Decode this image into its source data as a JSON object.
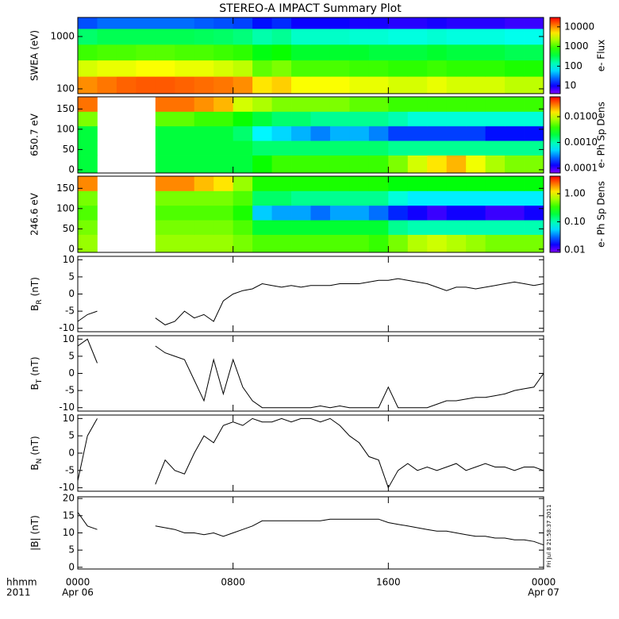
{
  "title": "STEREO-A IMPACT Summary Plot",
  "stamp": "Fri Jul  8 21:58:37 2011",
  "x_axis": {
    "xlim": [
      0,
      24
    ],
    "xticks": [
      {
        "value": 0,
        "label": "0000"
      },
      {
        "value": 8,
        "label": "0800"
      },
      {
        "value": 16,
        "label": "1600"
      },
      {
        "value": 24,
        "label": "0000"
      }
    ],
    "dates": [
      "Apr 06",
      "Apr 07"
    ],
    "label": [
      "hhmm",
      "2011"
    ]
  },
  "chart_data": [
    {
      "type": "heatmap",
      "ylabel": "SWEA (eV)",
      "ylog": true,
      "ylim": [
        81,
        2310
      ],
      "yticks": [
        100,
        1000
      ],
      "x": [
        0,
        1,
        2,
        3,
        4,
        5,
        6,
        7,
        8,
        9,
        10,
        11,
        12,
        13,
        14,
        15,
        16,
        17,
        18,
        19,
        20,
        21,
        22,
        23
      ],
      "y": [
        120,
        250,
        500,
        1000,
        2000
      ],
      "values": [
        [
          10000,
          12000,
          14000,
          15000,
          15000,
          14000,
          13000,
          12000,
          10000,
          5000,
          6000,
          4000,
          4000,
          4000,
          3500,
          3500,
          3000,
          3000,
          3500,
          3000,
          3000,
          3000,
          2500,
          2500
        ],
        [
          3000,
          3500,
          3500,
          4000,
          4000,
          3500,
          3500,
          3000,
          2500,
          1200,
          1500,
          1000,
          1000,
          1000,
          900,
          900,
          800,
          800,
          900,
          800,
          800,
          800,
          700,
          700
        ],
        [
          900,
          1000,
          1000,
          1100,
          1100,
          1000,
          1000,
          900,
          800,
          500,
          600,
          400,
          400,
          400,
          400,
          350,
          350,
          350,
          400,
          350,
          350,
          350,
          300,
          300
        ],
        [
          250,
          300,
          300,
          300,
          300,
          300,
          280,
          260,
          220,
          150,
          180,
          120,
          120,
          120,
          110,
          110,
          100,
          100,
          110,
          100,
          100,
          100,
          90,
          90
        ],
        [
          20,
          25,
          25,
          25,
          25,
          25,
          22,
          20,
          18,
          12,
          15,
          10,
          10,
          10,
          9,
          9,
          8,
          8,
          9,
          8,
          8,
          8,
          7,
          7
        ]
      ],
      "colorbar": {
        "label": "e- Flux",
        "log": true,
        "clim": [
          4,
          30000
        ],
        "ticks": [
          10,
          100,
          1000,
          10000
        ]
      }
    },
    {
      "type": "heatmap",
      "ylabel": "650.7 eV",
      "ylog": false,
      "ylim": [
        -8,
        180
      ],
      "yticks": [
        0,
        50,
        100,
        150
      ],
      "x": [
        0,
        1,
        2,
        3,
        4,
        5,
        6,
        7,
        8,
        9,
        10,
        11,
        12,
        13,
        14,
        15,
        16,
        17,
        18,
        19,
        20,
        21,
        22,
        23
      ],
      "y": [
        18,
        54,
        90,
        126,
        162
      ],
      "values": [
        [
          0.002,
          null,
          null,
          null,
          0.002,
          0.002,
          0.002,
          0.002,
          0.002,
          0.003,
          0.004,
          0.004,
          0.004,
          0.004,
          0.004,
          0.004,
          0.006,
          0.01,
          0.015,
          0.02,
          0.012,
          0.008,
          0.006,
          0.006
        ],
        [
          0.002,
          null,
          null,
          null,
          0.002,
          0.002,
          0.002,
          0.002,
          0.002,
          0.0015,
          0.0015,
          0.0015,
          0.0015,
          0.0015,
          0.0015,
          0.0015,
          0.0012,
          0.0012,
          0.0012,
          0.0012,
          0.0012,
          0.0012,
          0.0012,
          0.0012
        ],
        [
          0.002,
          null,
          null,
          null,
          0.002,
          0.002,
          0.002,
          0.002,
          0.0015,
          0.0006,
          0.0005,
          0.0004,
          0.0003,
          0.0004,
          0.0004,
          0.0003,
          0.0002,
          0.0002,
          0.0002,
          0.0002,
          0.0002,
          0.00015,
          0.00015,
          0.00015
        ],
        [
          0.006,
          null,
          null,
          null,
          0.005,
          0.005,
          0.004,
          0.004,
          0.003,
          0.002,
          0.0015,
          0.0015,
          0.0012,
          0.0012,
          0.0012,
          0.0012,
          0.001,
          0.0008,
          0.0008,
          0.0008,
          0.0008,
          0.0008,
          0.0008,
          0.0008
        ],
        [
          0.03,
          null,
          null,
          null,
          0.03,
          0.03,
          0.025,
          0.02,
          0.01,
          0.008,
          0.006,
          0.006,
          0.006,
          0.006,
          0.005,
          0.005,
          0.004,
          0.004,
          0.004,
          0.004,
          0.004,
          0.004,
          0.004,
          0.004
        ]
      ],
      "colorbar": {
        "label": "e- Ph Sp Dens",
        "log": true,
        "clim": [
          6.5e-05,
          0.059
        ],
        "ticks": [
          0.0001,
          {
            "value": 0.001,
            "label": "0.0010"
          },
          {
            "value": 0.01,
            "label": "0.0100"
          }
        ]
      }
    },
    {
      "type": "heatmap",
      "ylabel": "246.6 eV",
      "ylog": false,
      "ylim": [
        -8,
        180
      ],
      "yticks": [
        0,
        50,
        100,
        150
      ],
      "x": [
        0,
        1,
        2,
        3,
        4,
        5,
        6,
        7,
        8,
        9,
        10,
        11,
        12,
        13,
        14,
        15,
        16,
        17,
        18,
        19,
        20,
        21,
        22,
        23
      ],
      "y": [
        18,
        54,
        90,
        126,
        162
      ],
      "values": [
        [
          0.6,
          null,
          null,
          null,
          0.6,
          0.6,
          0.6,
          0.6,
          0.5,
          0.4,
          0.4,
          0.4,
          0.4,
          0.4,
          0.4,
          0.35,
          0.5,
          0.7,
          0.8,
          0.7,
          0.6,
          0.5,
          0.5,
          0.5
        ],
        [
          0.5,
          null,
          null,
          null,
          0.5,
          0.5,
          0.5,
          0.5,
          0.4,
          0.2,
          0.2,
          0.2,
          0.2,
          0.2,
          0.2,
          0.2,
          0.12,
          0.1,
          0.1,
          0.1,
          0.1,
          0.1,
          0.1,
          0.1
        ],
        [
          0.4,
          null,
          null,
          null,
          0.4,
          0.4,
          0.4,
          0.4,
          0.3,
          0.05,
          0.04,
          0.04,
          0.03,
          0.04,
          0.04,
          0.03,
          0.02,
          0.015,
          0.012,
          0.015,
          0.015,
          0.012,
          0.012,
          0.015
        ],
        [
          0.5,
          null,
          null,
          null,
          0.5,
          0.5,
          0.5,
          0.5,
          0.4,
          0.15,
          0.15,
          0.12,
          0.12,
          0.12,
          0.12,
          0.12,
          0.08,
          0.06,
          0.06,
          0.06,
          0.06,
          0.06,
          0.06,
          0.06
        ],
        [
          2,
          null,
          null,
          null,
          2,
          2,
          1.5,
          1.2,
          0.6,
          0.3,
          0.3,
          0.3,
          0.3,
          0.3,
          0.3,
          0.3,
          0.25,
          0.25,
          0.25,
          0.25,
          0.25,
          0.25,
          0.25,
          0.25
        ]
      ],
      "colorbar": {
        "label": "e- Ph Sp Dens",
        "log": true,
        "clim": [
          0.0082,
          4.2
        ],
        "ticks": [
          0.01,
          {
            "value": 0.1,
            "label": "0.10"
          },
          {
            "value": 1,
            "label": "1.00"
          }
        ]
      }
    },
    {
      "type": "line",
      "ylabel": {
        "symbol": "B",
        "sub": "R",
        "unit": "(nT)"
      },
      "ylim": [
        -11,
        11
      ],
      "yticks": [
        -10,
        -5,
        0,
        5,
        10
      ],
      "color": "#000000",
      "x": [
        0,
        0.5,
        1,
        1.5,
        2,
        2.5,
        3,
        3.5,
        4,
        4.5,
        5,
        5.5,
        6,
        6.5,
        7,
        7.5,
        8,
        8.5,
        9,
        9.5,
        10,
        10.5,
        11,
        11.5,
        12,
        12.5,
        13,
        13.5,
        14,
        14.5,
        15,
        15.5,
        16,
        16.5,
        17,
        17.5,
        18,
        18.5,
        19,
        19.5,
        20,
        20.5,
        21,
        21.5,
        22,
        22.5,
        23,
        23.5,
        24
      ],
      "values": [
        -8,
        -6,
        -5,
        null,
        null,
        null,
        null,
        null,
        -7,
        -9,
        -8,
        -5,
        -7,
        -6,
        -8,
        -2,
        0,
        1,
        1.5,
        3,
        2.5,
        2,
        2.5,
        2,
        2.5,
        2.5,
        2.5,
        3,
        3,
        3,
        3.5,
        4,
        4,
        4.5,
        4,
        3.5,
        3,
        2,
        1,
        2,
        2,
        1.5,
        2,
        2.5,
        3,
        3.5,
        3,
        2.5,
        3
      ]
    },
    {
      "type": "line",
      "ylabel": {
        "symbol": "B",
        "sub": "T",
        "unit": "(nT)"
      },
      "ylim": [
        -11,
        11
      ],
      "yticks": [
        -10,
        -5,
        0,
        5,
        10
      ],
      "color": "#000000",
      "x": [
        0,
        0.5,
        1,
        1.5,
        2,
        2.5,
        3,
        3.5,
        4,
        4.5,
        5,
        5.5,
        6,
        6.5,
        7,
        7.5,
        8,
        8.5,
        9,
        9.5,
        10,
        10.5,
        11,
        11.5,
        12,
        12.5,
        13,
        13.5,
        14,
        14.5,
        15,
        15.5,
        16,
        16.5,
        17,
        17.5,
        18,
        18.5,
        19,
        19.5,
        20,
        20.5,
        21,
        21.5,
        22,
        22.5,
        23,
        23.5,
        24
      ],
      "values": [
        8,
        10,
        3,
        null,
        null,
        null,
        null,
        null,
        8,
        6,
        5,
        4,
        -2,
        -8,
        4,
        -6,
        4,
        -4,
        -8,
        -10,
        -10,
        -10,
        -10,
        -10,
        -10,
        -9.5,
        -10,
        -9.5,
        -10,
        -10,
        -10,
        -10,
        -4,
        -10,
        -10,
        -10,
        -10,
        -9,
        -8,
        -8,
        -7.5,
        -7,
        -7,
        -6.5,
        -6,
        -5,
        -4.5,
        -4,
        0
      ]
    },
    {
      "type": "line",
      "ylabel": {
        "symbol": "B",
        "sub": "N",
        "unit": "(nT)"
      },
      "ylim": [
        -11,
        11
      ],
      "yticks": [
        -10,
        -5,
        0,
        5,
        10
      ],
      "color": "#000000",
      "x": [
        0,
        0.5,
        1,
        1.5,
        2,
        2.5,
        3,
        3.5,
        4,
        4.5,
        5,
        5.5,
        6,
        6.5,
        7,
        7.5,
        8,
        8.5,
        9,
        9.5,
        10,
        10.5,
        11,
        11.5,
        12,
        12.5,
        13,
        13.5,
        14,
        14.5,
        15,
        15.5,
        16,
        16.5,
        17,
        17.5,
        18,
        18.5,
        19,
        19.5,
        20,
        20.5,
        21,
        21.5,
        22,
        22.5,
        23,
        23.5,
        24
      ],
      "values": [
        -8,
        5,
        10,
        null,
        null,
        null,
        null,
        null,
        -9,
        -2,
        -5,
        -6,
        0,
        5,
        3,
        8,
        9,
        8,
        10,
        9,
        9,
        10,
        9,
        10,
        10,
        9,
        10,
        8,
        5,
        3,
        -1,
        -2,
        -10,
        -5,
        -3,
        -5,
        -4,
        -5,
        -4,
        -3,
        -5,
        -4,
        -3,
        -4,
        -4,
        -5,
        -4,
        -4,
        -5
      ]
    },
    {
      "type": "line",
      "ylabel": {
        "symbol": "|B|",
        "unit": "(nT)"
      },
      "ylim": [
        -0.5,
        20.5
      ],
      "yticks": [
        0,
        5,
        10,
        15,
        20
      ],
      "color": "#000000",
      "x": [
        0,
        0.5,
        1,
        1.5,
        2,
        2.5,
        3,
        3.5,
        4,
        4.5,
        5,
        5.5,
        6,
        6.5,
        7,
        7.5,
        8,
        8.5,
        9,
        9.5,
        10,
        10.5,
        11,
        11.5,
        12,
        12.5,
        13,
        13.5,
        14,
        14.5,
        15,
        15.5,
        16,
        16.5,
        17,
        17.5,
        18,
        18.5,
        19,
        19.5,
        20,
        20.5,
        21,
        21.5,
        22,
        22.5,
        23,
        23.5,
        24
      ],
      "values": [
        16,
        12,
        11,
        null,
        null,
        null,
        null,
        null,
        12,
        11.5,
        11,
        10,
        10,
        9.5,
        10,
        9,
        10,
        11,
        12,
        13.5,
        13.5,
        13.5,
        13.5,
        13.5,
        13.5,
        13.5,
        14,
        14,
        14,
        14,
        14,
        14,
        13,
        12.5,
        12,
        11.5,
        11,
        10.5,
        10.5,
        10,
        9.5,
        9,
        9,
        8.5,
        8.5,
        8,
        8,
        7.5,
        6.5
      ]
    }
  ]
}
